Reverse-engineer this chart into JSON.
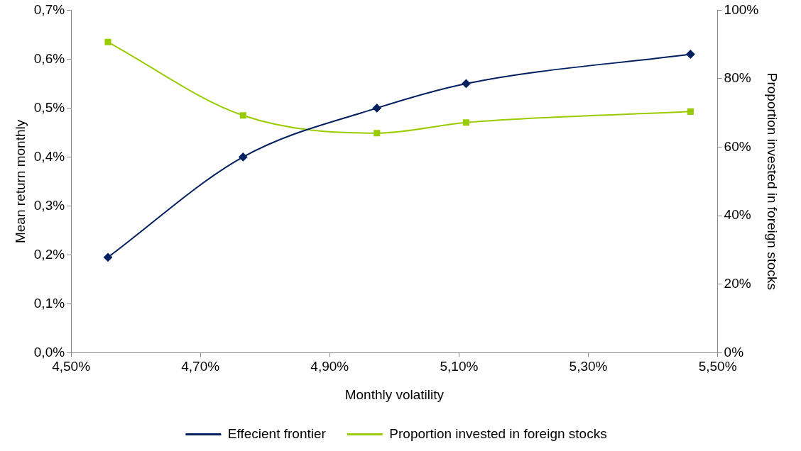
{
  "chart_data": {
    "type": "line",
    "xlabel": "Monthly volatility",
    "ylabel": "Mean return monthly",
    "y2label": "Proportion invested in foreign stocks",
    "x": [
      4.557,
      4.766,
      4.973,
      5.111,
      5.458
    ],
    "series": [
      {
        "name": "Effecient frontier",
        "color": "#002060",
        "marker": "diamond",
        "values": [
          0.195,
          0.4,
          0.5,
          0.55,
          0.61
        ]
      },
      {
        "name": "Proportion invested in foreign stocks",
        "color": "#99cc00",
        "marker": "square",
        "axis": "y2",
        "values": [
          90.7,
          69.3,
          64.1,
          67.2,
          70.4
        ]
      }
    ],
    "xlim": [
      4.5,
      5.5
    ],
    "xticks": [
      {
        "value": 4.5,
        "label": "4,50%"
      },
      {
        "value": 4.7,
        "label": "4,70%"
      },
      {
        "value": 4.9,
        "label": "4,90%"
      },
      {
        "value": 5.1,
        "label": "5,10%"
      },
      {
        "value": 5.3,
        "label": "5,30%"
      },
      {
        "value": 5.5,
        "label": "5,50%"
      }
    ],
    "ylim": [
      0,
      0.7
    ],
    "yticks": [
      {
        "value": 0,
        "label": "0,0%"
      },
      {
        "value": 0.1,
        "label": "0,1%"
      },
      {
        "value": 0.2,
        "label": "0,2%"
      },
      {
        "value": 0.3,
        "label": "0,3%"
      },
      {
        "value": 0.4,
        "label": "0,4%"
      },
      {
        "value": 0.5,
        "label": "0,5%"
      },
      {
        "value": 0.6,
        "label": "0,6%"
      },
      {
        "value": 0.7,
        "label": "0,7%"
      }
    ],
    "y2lim": [
      0,
      100
    ],
    "y2ticks": [
      {
        "value": 0,
        "label": "0%"
      },
      {
        "value": 20,
        "label": "20%"
      },
      {
        "value": 40,
        "label": "40%"
      },
      {
        "value": 60,
        "label": "60%"
      },
      {
        "value": 80,
        "label": "80%"
      },
      {
        "value": 100,
        "label": "100%"
      }
    ],
    "grid": false,
    "legend": "bottom",
    "line_style": "solid"
  }
}
